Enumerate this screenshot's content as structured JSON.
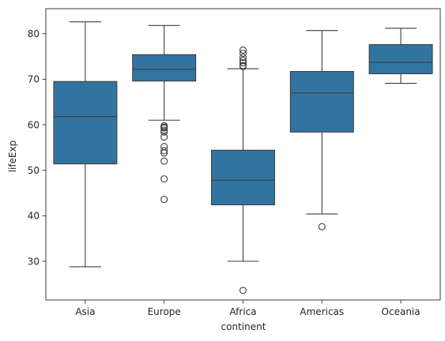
{
  "chart_data": {
    "type": "box",
    "xlabel": "continent",
    "ylabel": "lifeExp",
    "ylim": [
      21.5,
      85.5
    ],
    "yticks": [
      30,
      40,
      50,
      60,
      70,
      80
    ],
    "grid": false,
    "legend": "none",
    "box_color": "#3274a1",
    "line_color": "#3d3d3d",
    "categories": [
      {
        "name": "Asia",
        "whisker_low": 28.8,
        "q1": 51.4,
        "median": 61.8,
        "q3": 69.5,
        "whisker_high": 82.6,
        "outliers": []
      },
      {
        "name": "Europe",
        "whisker_low": 61.0,
        "q1": 69.6,
        "median": 72.2,
        "q3": 75.4,
        "whisker_high": 81.8,
        "outliers": [
          59.8,
          59.5,
          59.3,
          58.8,
          58.4,
          57.3,
          55.2,
          54.3,
          53.8,
          52.0,
          48.1,
          43.6
        ]
      },
      {
        "name": "Africa",
        "whisker_low": 30.0,
        "q1": 42.4,
        "median": 47.8,
        "q3": 54.4,
        "whisker_high": 72.3,
        "outliers": [
          76.4,
          75.7,
          74.8,
          74.1,
          73.6,
          73.0,
          72.8,
          23.6
        ]
      },
      {
        "name": "Americas",
        "whisker_low": 40.4,
        "q1": 58.4,
        "median": 67.0,
        "q3": 71.7,
        "whisker_high": 80.7,
        "outliers": [
          37.6
        ]
      },
      {
        "name": "Oceania",
        "whisker_low": 69.1,
        "q1": 71.2,
        "median": 73.7,
        "q3": 77.6,
        "whisker_high": 81.2,
        "outliers": []
      }
    ]
  }
}
